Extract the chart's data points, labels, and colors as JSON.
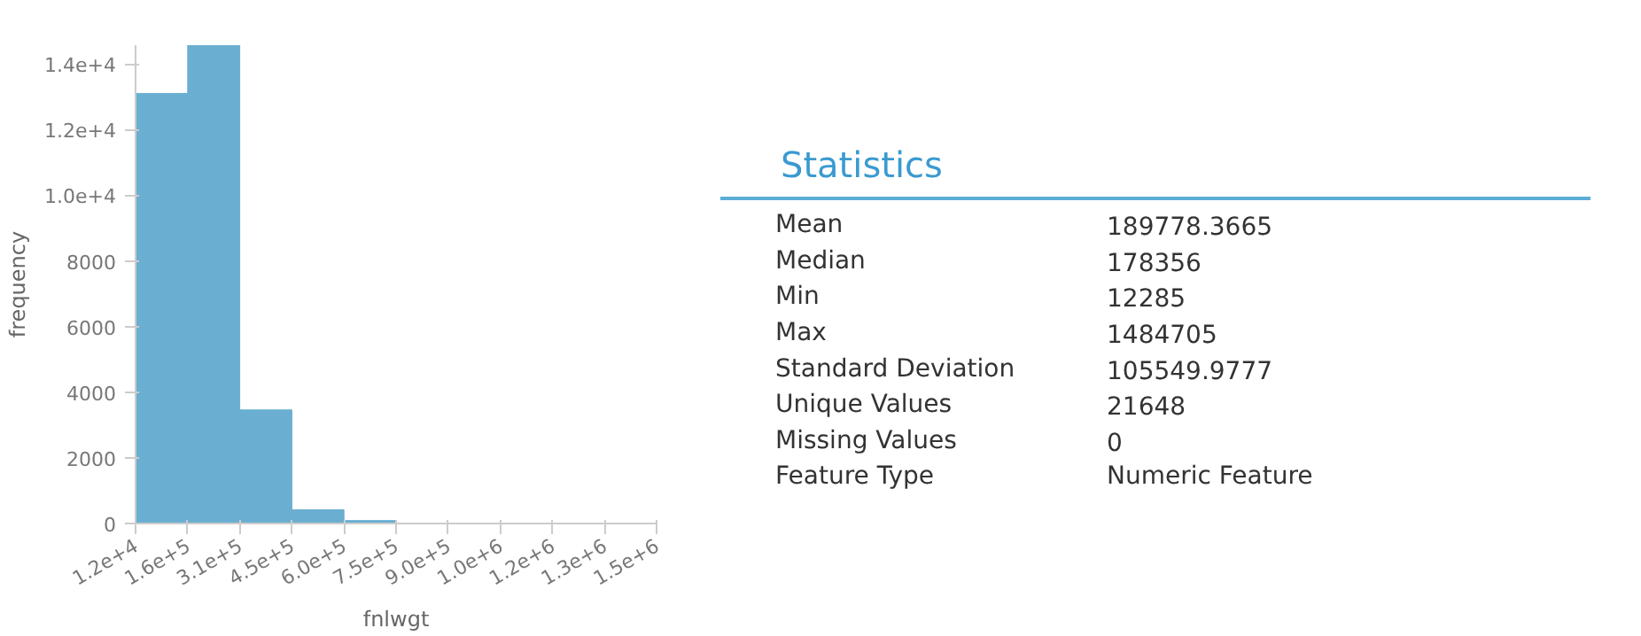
{
  "chart_data": [
    {
      "type": "histogram",
      "xlabel": "fnlwgt",
      "ylabel": "frequency",
      "color": "#6aafd2",
      "bins": [
        12285,
        159527,
        306769,
        454011,
        601253,
        748495,
        895737,
        1042979,
        1190221,
        1337463,
        1484705
      ],
      "values": [
        13100,
        14570,
        3460,
        420,
        90,
        0,
        0,
        0,
        0,
        0
      ],
      "xlim": [
        12285,
        1484705
      ],
      "xticks": [
        {
          "value": 12285,
          "label": "1.2e+4"
        },
        {
          "value": 159527,
          "label": "1.6e+5"
        },
        {
          "value": 306769,
          "label": "3.1e+5"
        },
        {
          "value": 454011,
          "label": "4.5e+5"
        },
        {
          "value": 601253,
          "label": "6.0e+5"
        },
        {
          "value": 748495,
          "label": "7.5e+5"
        },
        {
          "value": 895737,
          "label": "9.0e+5"
        },
        {
          "value": 1042979,
          "label": "1.0e+6"
        },
        {
          "value": 1190221,
          "label": "1.2e+6"
        },
        {
          "value": 1337463,
          "label": "1.3e+6"
        },
        {
          "value": 1484705,
          "label": "1.5e+6"
        }
      ],
      "ylim": [
        0,
        14570
      ],
      "yticks": [
        0,
        2000,
        4000,
        6000,
        8000,
        {
          "value": 10000,
          "label": "1.0e+4"
        },
        {
          "value": 12000,
          "label": "1.2e+4"
        },
        {
          "value": 14000,
          "label": "1.4e+4"
        }
      ],
      "grid": false
    },
    {
      "type": "other",
      "title": "Statistics",
      "annotations": [
        "Mean",
        "189778.3665",
        "Median",
        "178356",
        "Min",
        "12285",
        "Max",
        "1484705",
        "Standard Deviation",
        "105549.9777",
        "Unique Values",
        "21648",
        "Missing Values",
        "0",
        "Feature Type",
        "Numeric Feature"
      ]
    }
  ]
}
